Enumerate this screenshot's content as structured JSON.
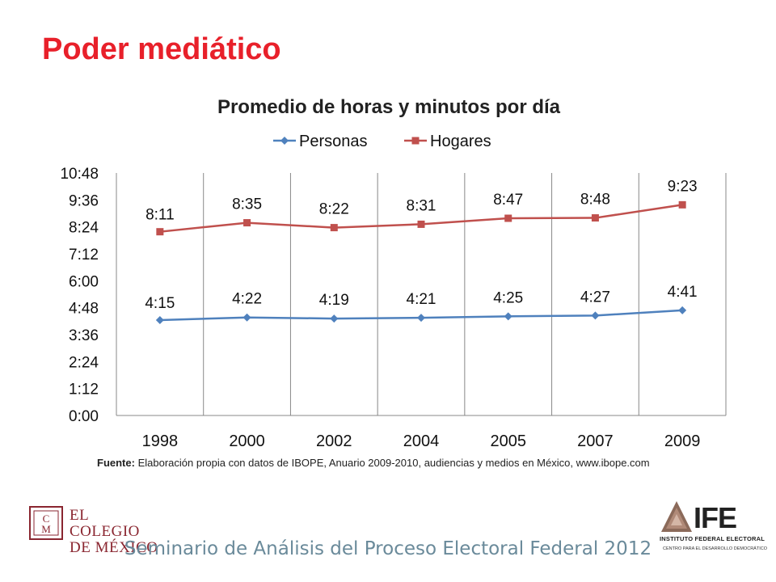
{
  "slide": {
    "title": "Poder mediático",
    "footer": "Seminario de Análisis del Proceso Electoral Federal 2012"
  },
  "source": {
    "label": "Fuente:",
    "text": " Elaboración propia con datos de IBOPE, Anuario 2009-2010, audiencias y medios en México, www.ibope.com"
  },
  "logos": {
    "colmex": {
      "line1": "EL COLEGIO",
      "line2": "DE MÉXICO",
      "mark_letters": "CM"
    },
    "ife": {
      "name": "IFE",
      "line1": "INSTITUTO FEDERAL ELECTORAL",
      "line2": "CENTRO PARA EL DESARROLLO DEMOCRÁTICO"
    }
  },
  "colors": {
    "title": "#e8202a",
    "personas": "#4f81bd",
    "hogares": "#c0504d",
    "gridline": "#888888",
    "colmex": "#8a2630"
  },
  "chart_data": {
    "type": "line",
    "title": "Promedio de horas y minutos por día",
    "xlabel": "",
    "ylabel": "",
    "categories": [
      "1998",
      "2000",
      "2002",
      "2004",
      "2005",
      "2007",
      "2009"
    ],
    "series": [
      {
        "name": "Personas",
        "marker": "diamond",
        "values_minutes": [
          255,
          262,
          259,
          261,
          265,
          267,
          281
        ],
        "labels": [
          "4:15",
          "4:22",
          "4:19",
          "4:21",
          "4:25",
          "4:27",
          "4:41"
        ]
      },
      {
        "name": "Hogares",
        "marker": "square",
        "values_minutes": [
          491,
          515,
          502,
          511,
          527,
          528,
          563
        ],
        "labels": [
          "8:11",
          "8:35",
          "8:22",
          "8:31",
          "8:47",
          "8:48",
          "9:23"
        ]
      }
    ],
    "y_unit": "minutes",
    "ylim_minutes": [
      0,
      648
    ],
    "yticks_minutes": [
      0,
      72,
      144,
      216,
      288,
      360,
      432,
      504,
      576,
      648
    ],
    "ytick_labels": [
      "0:00",
      "1:12",
      "2:24",
      "3:36",
      "4:48",
      "6:00",
      "7:12",
      "8:24",
      "9:36",
      "10:48"
    ],
    "vertical_gridlines": true,
    "legend_position": "top"
  }
}
